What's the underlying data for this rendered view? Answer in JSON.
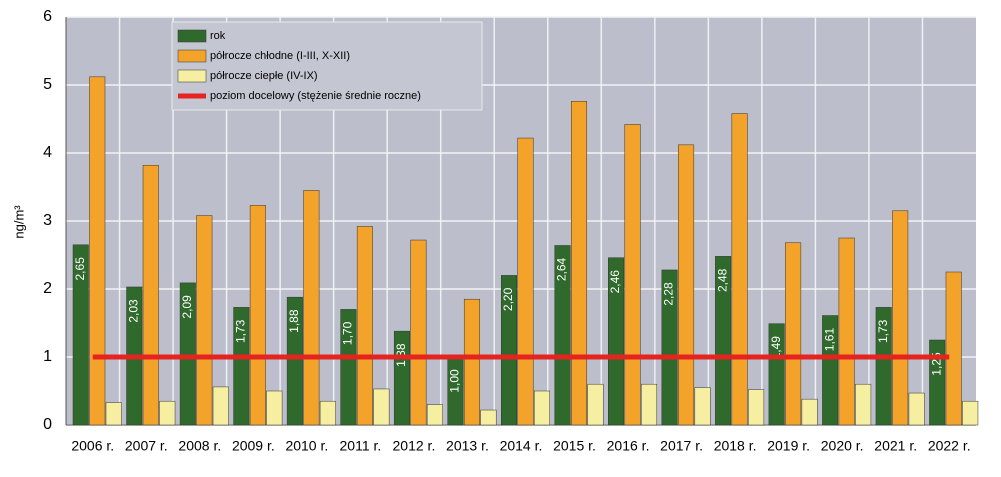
{
  "chart_data": {
    "type": "bar",
    "y_label": "ng/m³",
    "categories": [
      "2006 r.",
      "2007 r.",
      "2008 r.",
      "2009 r.",
      "2010 r.",
      "2011 r.",
      "2012 r.",
      "2013 r.",
      "2014 r.",
      "2015 r.",
      "2016 r.",
      "2017 r.",
      "2018 r.",
      "2019 r.",
      "2020 r.",
      "2021 r.",
      "2022 r."
    ],
    "series": [
      {
        "name": "rok",
        "color": "#2f6a2c",
        "values": [
          2.65,
          2.03,
          2.09,
          1.73,
          1.88,
          1.7,
          1.38,
          1.0,
          2.2,
          2.64,
          2.46,
          2.28,
          2.48,
          1.49,
          1.61,
          1.73,
          1.25
        ],
        "value_labels": [
          "2,65",
          "2,03",
          "2,09",
          "1,73",
          "1,88",
          "1,70",
          "1,38",
          "1,00",
          "2,20",
          "2,64",
          "2,46",
          "2,28",
          "2,48",
          "1,49",
          "1,61",
          "1,73",
          "1,25"
        ]
      },
      {
        "name": "półrocze chłodne (I-III, X-XII)",
        "color": "#f3a22a",
        "values": [
          5.12,
          3.82,
          3.08,
          3.23,
          3.45,
          2.92,
          2.72,
          1.85,
          4.22,
          4.76,
          4.42,
          4.12,
          4.58,
          2.68,
          2.75,
          3.15,
          2.25
        ]
      },
      {
        "name": "półrocze ciepłe (IV-IX)",
        "color": "#f6eea0",
        "values": [
          0.33,
          0.35,
          0.56,
          0.5,
          0.35,
          0.53,
          0.3,
          0.22,
          0.5,
          0.6,
          0.6,
          0.55,
          0.52,
          0.38,
          0.6,
          0.47,
          0.35
        ]
      }
    ],
    "target": {
      "name": "poziom docelowy (stężenie średnie roczne)",
      "color": "#e5231f",
      "value": 1
    },
    "ylim": [
      0,
      6
    ],
    "yticks": [
      0,
      1,
      2,
      3,
      4,
      5,
      6
    ],
    "grid": true
  }
}
